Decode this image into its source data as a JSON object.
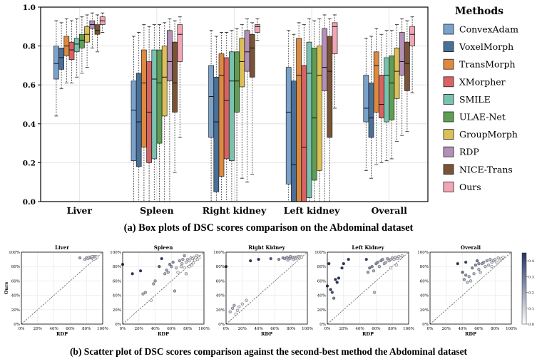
{
  "figure": {
    "caption_a": "(a) Box plots of DSC scores comparison on the Abdominal dataset",
    "caption_b": "(b) Scatter plot of DSC scores  comparison  against the second-best method the Abdominal dataset"
  },
  "legend": {
    "title": "Methods",
    "items": [
      {
        "name": "ConvexAdam",
        "color": "#7aa3cc"
      },
      {
        "name": "VoxelMorph",
        "color": "#4a6f99"
      },
      {
        "name": "TransMorph",
        "color": "#dd8a3f"
      },
      {
        "name": "XMorpher",
        "color": "#d96262"
      },
      {
        "name": "SMILE",
        "color": "#79c2b0"
      },
      {
        "name": "ULAE-Net",
        "color": "#5f9e54"
      },
      {
        "name": "GroupMorph",
        "color": "#dcc057"
      },
      {
        "name": "RDP",
        "color": "#b48fb8"
      },
      {
        "name": "NICE-Trans",
        "color": "#7a5236"
      },
      {
        "name": "Ours",
        "color": "#f2a5b5"
      }
    ]
  },
  "chart_data": [
    {
      "type": "box",
      "title": "",
      "xlabel": "",
      "ylabel": "",
      "ylim": [
        0,
        1
      ],
      "yticks": [
        "0.0",
        "0.2",
        "0.4",
        "0.6",
        "0.8",
        "1.0"
      ],
      "categories": [
        "Liver",
        "Spleen",
        "Right kidney",
        "Left kidney",
        "Overall"
      ],
      "series_order": [
        "ConvexAdam",
        "VoxelMorph",
        "TransMorph",
        "XMorpher",
        "SMILE",
        "ULAE-Net",
        "GroupMorph",
        "RDP",
        "NICE-Trans",
        "Ours"
      ],
      "boxes": [
        [
          [
            0.44,
            0.63,
            0.71,
            0.8,
            0.93
          ],
          [
            0.58,
            0.68,
            0.74,
            0.79,
            0.92
          ],
          [
            0.61,
            0.75,
            0.8,
            0.85,
            0.94
          ],
          [
            0.61,
            0.73,
            0.78,
            0.82,
            0.93
          ],
          [
            0.64,
            0.77,
            0.81,
            0.84,
            0.94
          ],
          [
            0.66,
            0.79,
            0.83,
            0.86,
            0.95
          ],
          [
            0.69,
            0.82,
            0.86,
            0.9,
            0.96
          ],
          [
            0.79,
            0.89,
            0.91,
            0.93,
            0.97
          ],
          [
            0.77,
            0.86,
            0.88,
            0.91,
            0.96
          ],
          [
            0.87,
            0.91,
            0.93,
            0.95,
            0.97
          ]
        ],
        [
          [
            0.0,
            0.21,
            0.47,
            0.62,
            0.85
          ],
          [
            0.0,
            0.18,
            0.41,
            0.66,
            0.87
          ],
          [
            0.0,
            0.28,
            0.61,
            0.78,
            0.91
          ],
          [
            0.0,
            0.2,
            0.46,
            0.72,
            0.9
          ],
          [
            0.0,
            0.22,
            0.63,
            0.78,
            0.91
          ],
          [
            0.0,
            0.3,
            0.61,
            0.78,
            0.91
          ],
          [
            0.0,
            0.44,
            0.64,
            0.8,
            0.92
          ],
          [
            0.0,
            0.62,
            0.72,
            0.88,
            0.94
          ],
          [
            0.15,
            0.46,
            0.61,
            0.82,
            0.93
          ],
          [
            0.33,
            0.72,
            0.86,
            0.91,
            0.95
          ]
        ],
        [
          [
            0.0,
            0.33,
            0.54,
            0.7,
            0.88
          ],
          [
            0.0,
            0.05,
            0.41,
            0.64,
            0.85
          ],
          [
            0.0,
            0.13,
            0.65,
            0.76,
            0.87
          ],
          [
            0.0,
            0.22,
            0.52,
            0.74,
            0.87
          ],
          [
            0.0,
            0.21,
            0.62,
            0.77,
            0.88
          ],
          [
            0.0,
            0.46,
            0.62,
            0.77,
            0.89
          ],
          [
            0.12,
            0.59,
            0.72,
            0.84,
            0.91
          ],
          [
            0.1,
            0.67,
            0.77,
            0.88,
            0.94
          ],
          [
            0.14,
            0.64,
            0.79,
            0.86,
            0.92
          ],
          [
            0.83,
            0.87,
            0.9,
            0.91,
            0.94
          ]
        ],
        [
          [
            0.0,
            0.09,
            0.46,
            0.69,
            0.88
          ],
          [
            0.0,
            0.0,
            0.19,
            0.62,
            0.86
          ],
          [
            0.0,
            0.0,
            0.65,
            0.84,
            0.92
          ],
          [
            0.0,
            0.0,
            0.28,
            0.7,
            0.91
          ],
          [
            0.0,
            0.02,
            0.66,
            0.82,
            0.94
          ],
          [
            0.0,
            0.11,
            0.43,
            0.79,
            0.93
          ],
          [
            0.0,
            0.16,
            0.65,
            0.8,
            0.94
          ],
          [
            0.0,
            0.57,
            0.69,
            0.89,
            0.96
          ],
          [
            0.0,
            0.33,
            0.67,
            0.85,
            0.94
          ],
          [
            0.48,
            0.76,
            0.9,
            0.92,
            0.96
          ]
        ],
        [
          [
            0.16,
            0.41,
            0.48,
            0.65,
            0.84
          ],
          [
            0.12,
            0.33,
            0.43,
            0.61,
            0.85
          ],
          [
            0.19,
            0.46,
            0.7,
            0.77,
            0.89
          ],
          [
            0.2,
            0.43,
            0.5,
            0.65,
            0.86
          ],
          [
            0.21,
            0.41,
            0.65,
            0.74,
            0.88
          ],
          [
            0.22,
            0.42,
            0.61,
            0.75,
            0.88
          ],
          [
            0.31,
            0.53,
            0.67,
            0.79,
            0.91
          ],
          [
            0.34,
            0.65,
            0.72,
            0.87,
            0.94
          ],
          [
            0.36,
            0.57,
            0.71,
            0.82,
            0.93
          ],
          [
            0.56,
            0.8,
            0.86,
            0.9,
            0.95
          ]
        ]
      ]
    },
    {
      "type": "scatter",
      "panels": [
        {
          "title": "Liver",
          "points": [
            [
              72,
              92
            ],
            [
              78,
              90
            ],
            [
              80,
              92
            ],
            [
              82,
              91
            ],
            [
              83,
              93
            ],
            [
              85,
              92
            ],
            [
              86,
              93
            ],
            [
              87,
              92
            ],
            [
              88,
              94
            ],
            [
              88,
              91
            ],
            [
              89,
              93
            ],
            [
              90,
              94
            ],
            [
              90,
              92
            ],
            [
              91,
              93
            ],
            [
              92,
              94
            ],
            [
              93,
              93
            ],
            [
              91,
              91
            ],
            [
              89,
              90
            ],
            [
              87,
              94
            ]
          ]
        },
        {
          "title": "Spleen",
          "points": [
            [
              0,
              83
            ],
            [
              12,
              70
            ],
            [
              22,
              74
            ],
            [
              25,
              42
            ],
            [
              28,
              44
            ],
            [
              35,
              33
            ],
            [
              38,
              56
            ],
            [
              40,
              60
            ],
            [
              45,
              80
            ],
            [
              48,
              91
            ],
            [
              52,
              70
            ],
            [
              54,
              75
            ],
            [
              56,
              72
            ],
            [
              58,
              83
            ],
            [
              60,
              80
            ],
            [
              62,
              86
            ],
            [
              64,
              46
            ],
            [
              66,
              78
            ],
            [
              68,
              72
            ],
            [
              70,
              88
            ],
            [
              72,
              80
            ],
            [
              73,
              84
            ],
            [
              74,
              90
            ],
            [
              76,
              78
            ],
            [
              78,
              86
            ],
            [
              80,
              90
            ],
            [
              82,
              88
            ],
            [
              84,
              92
            ],
            [
              85,
              82
            ],
            [
              86,
              91
            ],
            [
              87,
              85
            ],
            [
              88,
              93
            ],
            [
              89,
              89
            ],
            [
              90,
              92
            ],
            [
              91,
              95
            ],
            [
              92,
              90
            ],
            [
              93,
              94
            ],
            [
              94,
              92
            ],
            [
              82,
              80
            ],
            [
              78,
              70
            ],
            [
              76,
              95
            ]
          ]
        },
        {
          "title": "Right Kidney",
          "points": [
            [
              0,
              80
            ],
            [
              5,
              17
            ],
            [
              8,
              22
            ],
            [
              10,
              26
            ],
            [
              12,
              14
            ],
            [
              14,
              19
            ],
            [
              16,
              24
            ],
            [
              20,
              28
            ],
            [
              25,
              33
            ],
            [
              30,
              88
            ],
            [
              40,
              90
            ],
            [
              55,
              91
            ],
            [
              65,
              90
            ],
            [
              70,
              92
            ],
            [
              72,
              91
            ],
            [
              75,
              93
            ],
            [
              78,
              91
            ],
            [
              80,
              92
            ],
            [
              82,
              93
            ],
            [
              83,
              90
            ],
            [
              84,
              92
            ],
            [
              85,
              93
            ],
            [
              86,
              91
            ],
            [
              87,
              93
            ],
            [
              88,
              92
            ],
            [
              89,
              94
            ],
            [
              90,
              93
            ],
            [
              91,
              92
            ],
            [
              92,
              94
            ],
            [
              93,
              93
            ],
            [
              76,
              89
            ],
            [
              79,
              94
            ]
          ]
        },
        {
          "title": "Left Kidney",
          "points": [
            [
              0,
              53
            ],
            [
              2,
              84
            ],
            [
              4,
              48
            ],
            [
              6,
              44
            ],
            [
              8,
              36
            ],
            [
              10,
              62
            ],
            [
              12,
              58
            ],
            [
              14,
              64
            ],
            [
              18,
              78
            ],
            [
              20,
              84
            ],
            [
              26,
              90
            ],
            [
              48,
              90
            ],
            [
              50,
              72
            ],
            [
              52,
              78
            ],
            [
              55,
              80
            ],
            [
              57,
              74
            ],
            [
              58,
              44
            ],
            [
              60,
              84
            ],
            [
              62,
              86
            ],
            [
              64,
              80
            ],
            [
              66,
              88
            ],
            [
              68,
              90
            ],
            [
              70,
              84
            ],
            [
              72,
              86
            ],
            [
              74,
              91
            ],
            [
              76,
              88
            ],
            [
              78,
              90
            ],
            [
              80,
              92
            ],
            [
              82,
              90
            ],
            [
              84,
              93
            ],
            [
              86,
              91
            ],
            [
              88,
              94
            ],
            [
              90,
              92
            ],
            [
              92,
              95
            ],
            [
              85,
              82
            ],
            [
              78,
              78
            ]
          ]
        },
        {
          "title": "Overall",
          "points": [
            [
              34,
              84
            ],
            [
              40,
              72
            ],
            [
              42,
              62
            ],
            [
              44,
              68
            ],
            [
              46,
              58
            ],
            [
              48,
              66
            ],
            [
              50,
              60
            ],
            [
              52,
              78
            ],
            [
              54,
              70
            ],
            [
              56,
              82
            ],
            [
              58,
              88
            ],
            [
              60,
              76
            ],
            [
              62,
              72
            ],
            [
              64,
              84
            ],
            [
              66,
              86
            ],
            [
              68,
              80
            ],
            [
              70,
              88
            ],
            [
              72,
              82
            ],
            [
              74,
              90
            ],
            [
              76,
              86
            ],
            [
              78,
              88
            ],
            [
              80,
              90
            ],
            [
              82,
              86
            ],
            [
              84,
              92
            ],
            [
              86,
              89
            ],
            [
              88,
              91
            ],
            [
              90,
              93
            ],
            [
              60,
              84
            ],
            [
              44,
              86
            ],
            [
              76,
              80
            ]
          ]
        }
      ],
      "xlabel": "RDP",
      "ylabel": "Ours",
      "xticks": [
        "0%",
        "20%",
        "40%",
        "60%",
        "80%",
        "100%"
      ],
      "yticks": [
        "0%",
        "20%",
        "40%",
        "60%",
        "80%",
        "100%"
      ],
      "colorbar_ticks": [
        "0.0",
        "0.1",
        "0.2",
        "0.3",
        "0.4"
      ],
      "colorbar_range": [
        0,
        0.45
      ]
    }
  ]
}
